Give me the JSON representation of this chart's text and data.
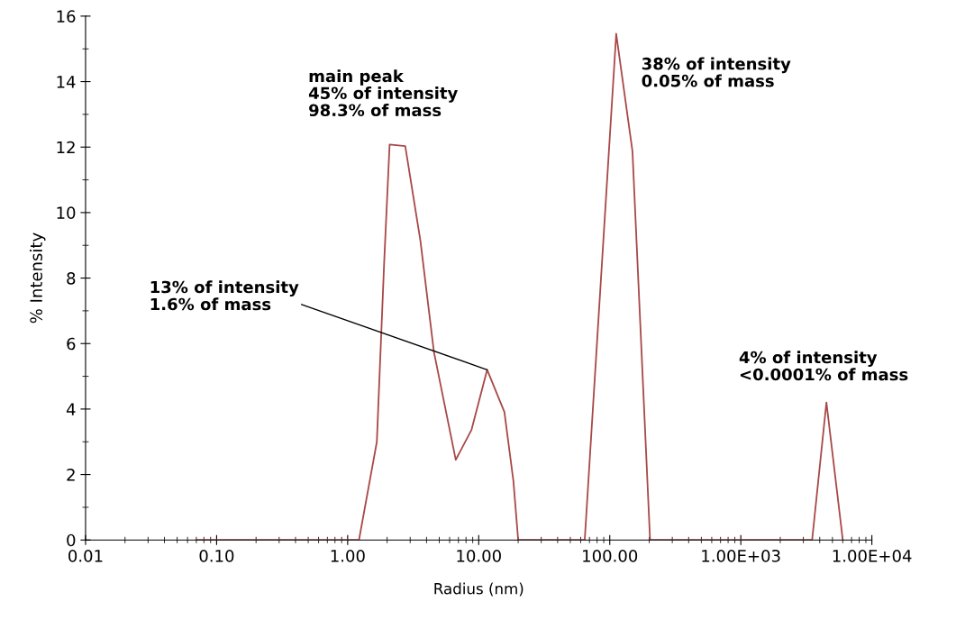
{
  "chart_data": {
    "type": "line",
    "xlabel": "Radius (nm)",
    "ylabel": "% Intensity",
    "log": "x",
    "x": [
      0.07,
      1.22,
      1.67,
      1.9,
      2.09,
      2.75,
      3.59,
      4.55,
      6.68,
      8.8,
      11.6,
      15.7,
      18.4,
      20,
      64.4,
      112,
      149,
      203,
      3500,
      4500,
      6000
    ],
    "series": [
      {
        "color": "#a84848",
        "values": [
          0,
          0,
          3.0,
          8.5,
          12.08,
          12.03,
          9.14,
          5.75,
          2.45,
          3.36,
          5.2,
          3.91,
          1.8,
          0,
          0,
          15.46,
          11.87,
          0,
          0,
          4.2,
          0
        ]
      }
    ],
    "xlim": [
      0.01,
      10000
    ],
    "xticks": [
      {
        "value": 0.01,
        "label": "0.01"
      },
      {
        "value": 0.1,
        "label": "0.10"
      },
      {
        "value": 1,
        "label": "1.00"
      },
      {
        "value": 10,
        "label": "10.00"
      },
      {
        "value": 100,
        "label": "100.00"
      },
      {
        "value": 1000,
        "label": "1.00E+03"
      },
      {
        "value": 10000,
        "label": "1.00E+04"
      }
    ],
    "ylim": [
      0,
      16
    ],
    "yticks": [
      0,
      2,
      4,
      6,
      8,
      10,
      12,
      14,
      16
    ],
    "grid": false,
    "legend": false,
    "marker": "none",
    "line_style": "solid",
    "annotations": [
      {
        "text": "main peak\n45% of intensity\n98.3% of mass",
        "x": 2.09,
        "y": 12.08
      },
      {
        "text": "13% of intensity\n1.6% of mass",
        "x": 11.6,
        "y": 5.2
      },
      {
        "text": "38% of intensity\n0.05% of mass",
        "x": 112,
        "y": 15.46
      },
      {
        "text": "4% of intensity\n<0.0001% of mass",
        "x": 4500,
        "y": 4.2
      }
    ]
  }
}
